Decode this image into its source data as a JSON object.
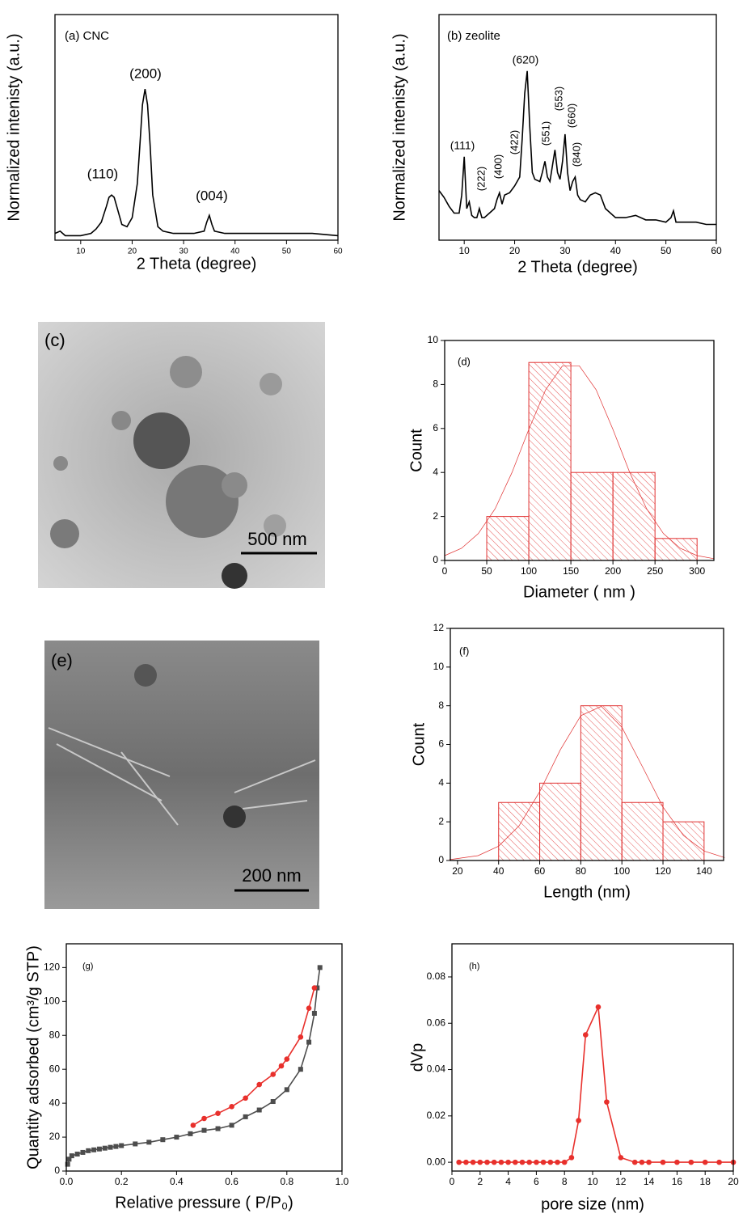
{
  "chart_data": [
    {
      "type": "line",
      "xlabel": "2 Theta (degree)",
      "ylabel": "Normalized intenisty (a.u.)",
      "annotations": [
        "(a) CNC",
        "(110)",
        "(200)",
        "(004)"
      ],
      "xlim": [
        5,
        60
      ],
      "ylim": [
        0,
        1
      ],
      "xticks": [
        10,
        20,
        30,
        40,
        50,
        60
      ],
      "x": [
        5,
        6,
        7,
        8,
        10,
        12,
        13,
        14,
        15,
        15.5,
        16,
        16.5,
        17,
        18,
        19,
        20,
        21,
        21.5,
        22,
        22.5,
        23,
        23.5,
        24,
        25,
        26,
        28,
        30,
        32,
        34,
        34.5,
        35,
        35.5,
        36,
        38,
        40,
        45,
        50,
        55,
        60
      ],
      "series": [
        {
          "color": "#000000",
          "values": [
            0.03,
            0.04,
            0.02,
            0.02,
            0.02,
            0.03,
            0.05,
            0.08,
            0.15,
            0.19,
            0.2,
            0.19,
            0.15,
            0.07,
            0.06,
            0.1,
            0.25,
            0.42,
            0.6,
            0.67,
            0.6,
            0.42,
            0.2,
            0.06,
            0.04,
            0.03,
            0.03,
            0.03,
            0.04,
            0.08,
            0.11,
            0.07,
            0.04,
            0.03,
            0.03,
            0.03,
            0.03,
            0.03,
            0.02
          ]
        }
      ]
    },
    {
      "type": "line",
      "xlabel": "2 Theta (degree)",
      "ylabel": "Normalized intenisty (a.u.)",
      "annotations": [
        "(b) zeolite",
        "(620)",
        "(111)",
        "(222)",
        "(400)",
        "(422)",
        "(551)",
        "(553)",
        "(660)",
        "(840)"
      ],
      "xlim": [
        5,
        60
      ],
      "ylim": [
        0,
        1
      ],
      "xticks": [
        10,
        20,
        30,
        40,
        50,
        60
      ],
      "x": [
        5,
        6,
        7,
        8,
        9,
        9.5,
        10,
        10.5,
        11,
        11.5,
        12,
        12.5,
        13,
        13.5,
        14,
        15,
        16,
        16.5,
        17,
        17.5,
        18,
        19,
        20,
        21,
        21.5,
        22,
        22.5,
        23,
        23.5,
        24,
        25,
        25.5,
        26,
        26.5,
        27,
        27.5,
        28,
        28.5,
        29,
        29.5,
        30,
        30.5,
        31,
        31.5,
        32,
        32.5,
        33,
        34,
        35,
        36,
        37,
        38,
        40,
        42,
        44,
        46,
        48,
        50,
        51,
        51.5,
        52,
        54,
        56,
        58,
        60
      ],
      "series": [
        {
          "color": "#000000",
          "values": [
            0.22,
            0.19,
            0.15,
            0.12,
            0.12,
            0.2,
            0.37,
            0.14,
            0.17,
            0.11,
            0.1,
            0.1,
            0.14,
            0.1,
            0.1,
            0.12,
            0.14,
            0.18,
            0.21,
            0.16,
            0.2,
            0.21,
            0.24,
            0.28,
            0.45,
            0.65,
            0.75,
            0.5,
            0.3,
            0.27,
            0.26,
            0.3,
            0.35,
            0.28,
            0.26,
            0.33,
            0.4,
            0.3,
            0.27,
            0.35,
            0.47,
            0.3,
            0.22,
            0.26,
            0.28,
            0.2,
            0.18,
            0.17,
            0.2,
            0.21,
            0.2,
            0.14,
            0.1,
            0.1,
            0.11,
            0.09,
            0.09,
            0.08,
            0.1,
            0.13,
            0.08,
            0.08,
            0.08,
            0.07,
            0.07
          ]
        }
      ]
    },
    {
      "type": "histogram",
      "xlabel": "Diameter ( nm )",
      "ylabel": "Count",
      "annotations": [
        "(d)"
      ],
      "xlim": [
        0,
        320
      ],
      "ylim": [
        0,
        10
      ],
      "xticks": [
        0,
        50,
        100,
        150,
        200,
        250,
        300
      ],
      "yticks": [
        0,
        2,
        4,
        6,
        8,
        10
      ],
      "color": "#e03030",
      "bins": [
        50,
        100,
        150,
        200,
        250,
        300
      ],
      "values": [
        2,
        9,
        4,
        4,
        1
      ],
      "fit": {
        "x": [
          0,
          20,
          40,
          60,
          80,
          100,
          120,
          140,
          160,
          180,
          200,
          220,
          240,
          260,
          280,
          300,
          320
        ],
        "values": [
          0.22,
          0.55,
          1.22,
          2.35,
          4.0,
          5.96,
          7.76,
          8.85,
          8.85,
          7.76,
          5.96,
          4.0,
          2.35,
          1.22,
          0.55,
          0.22,
          0.08
        ]
      }
    },
    {
      "type": "histogram",
      "xlabel": "Length (nm)",
      "ylabel": "Count",
      "annotations": [
        "(f)"
      ],
      "xlim": [
        16.5,
        149.5
      ],
      "ylim": [
        0,
        12
      ],
      "xticks": [
        20,
        40,
        60,
        80,
        100,
        120,
        140
      ],
      "yticks": [
        0,
        2,
        4,
        6,
        8,
        10,
        12
      ],
      "color": "#e03030",
      "bins": [
        40,
        60,
        80,
        100,
        120,
        140
      ],
      "values": [
        3,
        4,
        8,
        3,
        2
      ],
      "fit": {
        "x": [
          16,
          30,
          40,
          50,
          60,
          70,
          80,
          90,
          100,
          110,
          120,
          130,
          140,
          150
        ],
        "values": [
          0.04,
          0.25,
          0.74,
          1.8,
          3.56,
          5.72,
          7.49,
          7.97,
          6.89,
          4.85,
          2.77,
          1.29,
          0.49,
          0.15
        ]
      }
    },
    {
      "type": "line",
      "xlabel": "Relative pressure ( P/P₀)",
      "ylabel": "Quantity adsorbed (cm³/g STP)",
      "annotations": [
        "(g)"
      ],
      "xlim": [
        0,
        1
      ],
      "ylim": [
        0,
        134
      ],
      "xticks": [
        {
          "value": 0,
          "label": "0.0"
        },
        0.2,
        0.4,
        0.6,
        0.8,
        {
          "value": 1,
          "label": "1.0"
        }
      ],
      "yticks": [
        0,
        20,
        40,
        60,
        80,
        100,
        120
      ],
      "series": [
        {
          "color": "#4d4d4d",
          "marker": "square",
          "x": [
            0.005,
            0.01,
            0.02,
            0.04,
            0.06,
            0.08,
            0.1,
            0.12,
            0.14,
            0.16,
            0.18,
            0.2,
            0.25,
            0.3,
            0.35,
            0.4,
            0.45,
            0.5,
            0.55,
            0.6,
            0.65,
            0.7,
            0.75,
            0.8,
            0.85,
            0.88,
            0.9,
            0.91,
            0.92
          ],
          "values": [
            4,
            7,
            9,
            10,
            11,
            12,
            12.5,
            13,
            13.5,
            14,
            14.5,
            15,
            16,
            17,
            18.5,
            20,
            22,
            24,
            25,
            27,
            32,
            36,
            41,
            48,
            60,
            76,
            93,
            108,
            120
          ]
        },
        {
          "color": "#e8302c",
          "marker": "circle",
          "x": [
            0.46,
            0.5,
            0.55,
            0.6,
            0.65,
            0.7,
            0.75,
            0.78,
            0.8,
            0.85,
            0.88,
            0.9
          ],
          "values": [
            27,
            31,
            34,
            38,
            43,
            51,
            57,
            62,
            66,
            79,
            96,
            108
          ]
        }
      ]
    },
    {
      "type": "line",
      "xlabel": "pore size (nm)",
      "ylabel": "dVp",
      "annotations": [
        "(h)"
      ],
      "xlim": [
        0,
        20
      ],
      "ylim": [
        -0.0038,
        0.0943
      ],
      "xticks": [
        0,
        2,
        4,
        6,
        8,
        10,
        12,
        14,
        16,
        18,
        20
      ],
      "yticks": [
        {
          "value": 0,
          "label": "0.00"
        },
        0.02,
        0.04,
        0.06,
        0.08
      ],
      "x": [
        0.5,
        1,
        1.5,
        2,
        2.5,
        3,
        3.5,
        4,
        4.5,
        5,
        5.5,
        6,
        6.5,
        7,
        7.5,
        8,
        8.5,
        9,
        9.5,
        10.4,
        11,
        12,
        13,
        13.5,
        14,
        15,
        16,
        17,
        18,
        19,
        20
      ],
      "series": [
        {
          "color": "#e8302c",
          "marker": "circle",
          "values": [
            0,
            0,
            0,
            0,
            0,
            0,
            0,
            0,
            0,
            0,
            0,
            0,
            0,
            0,
            0,
            0,
            0.002,
            0.018,
            0.055,
            0.067,
            0.026,
            0.002,
            0,
            0,
            0,
            0,
            0,
            0,
            0,
            0,
            0
          ]
        }
      ]
    }
  ],
  "images": [
    {
      "label": "(c)",
      "scale_bar": "500 nm"
    },
    {
      "label": "(e)",
      "scale_bar": "200 nm"
    }
  ]
}
